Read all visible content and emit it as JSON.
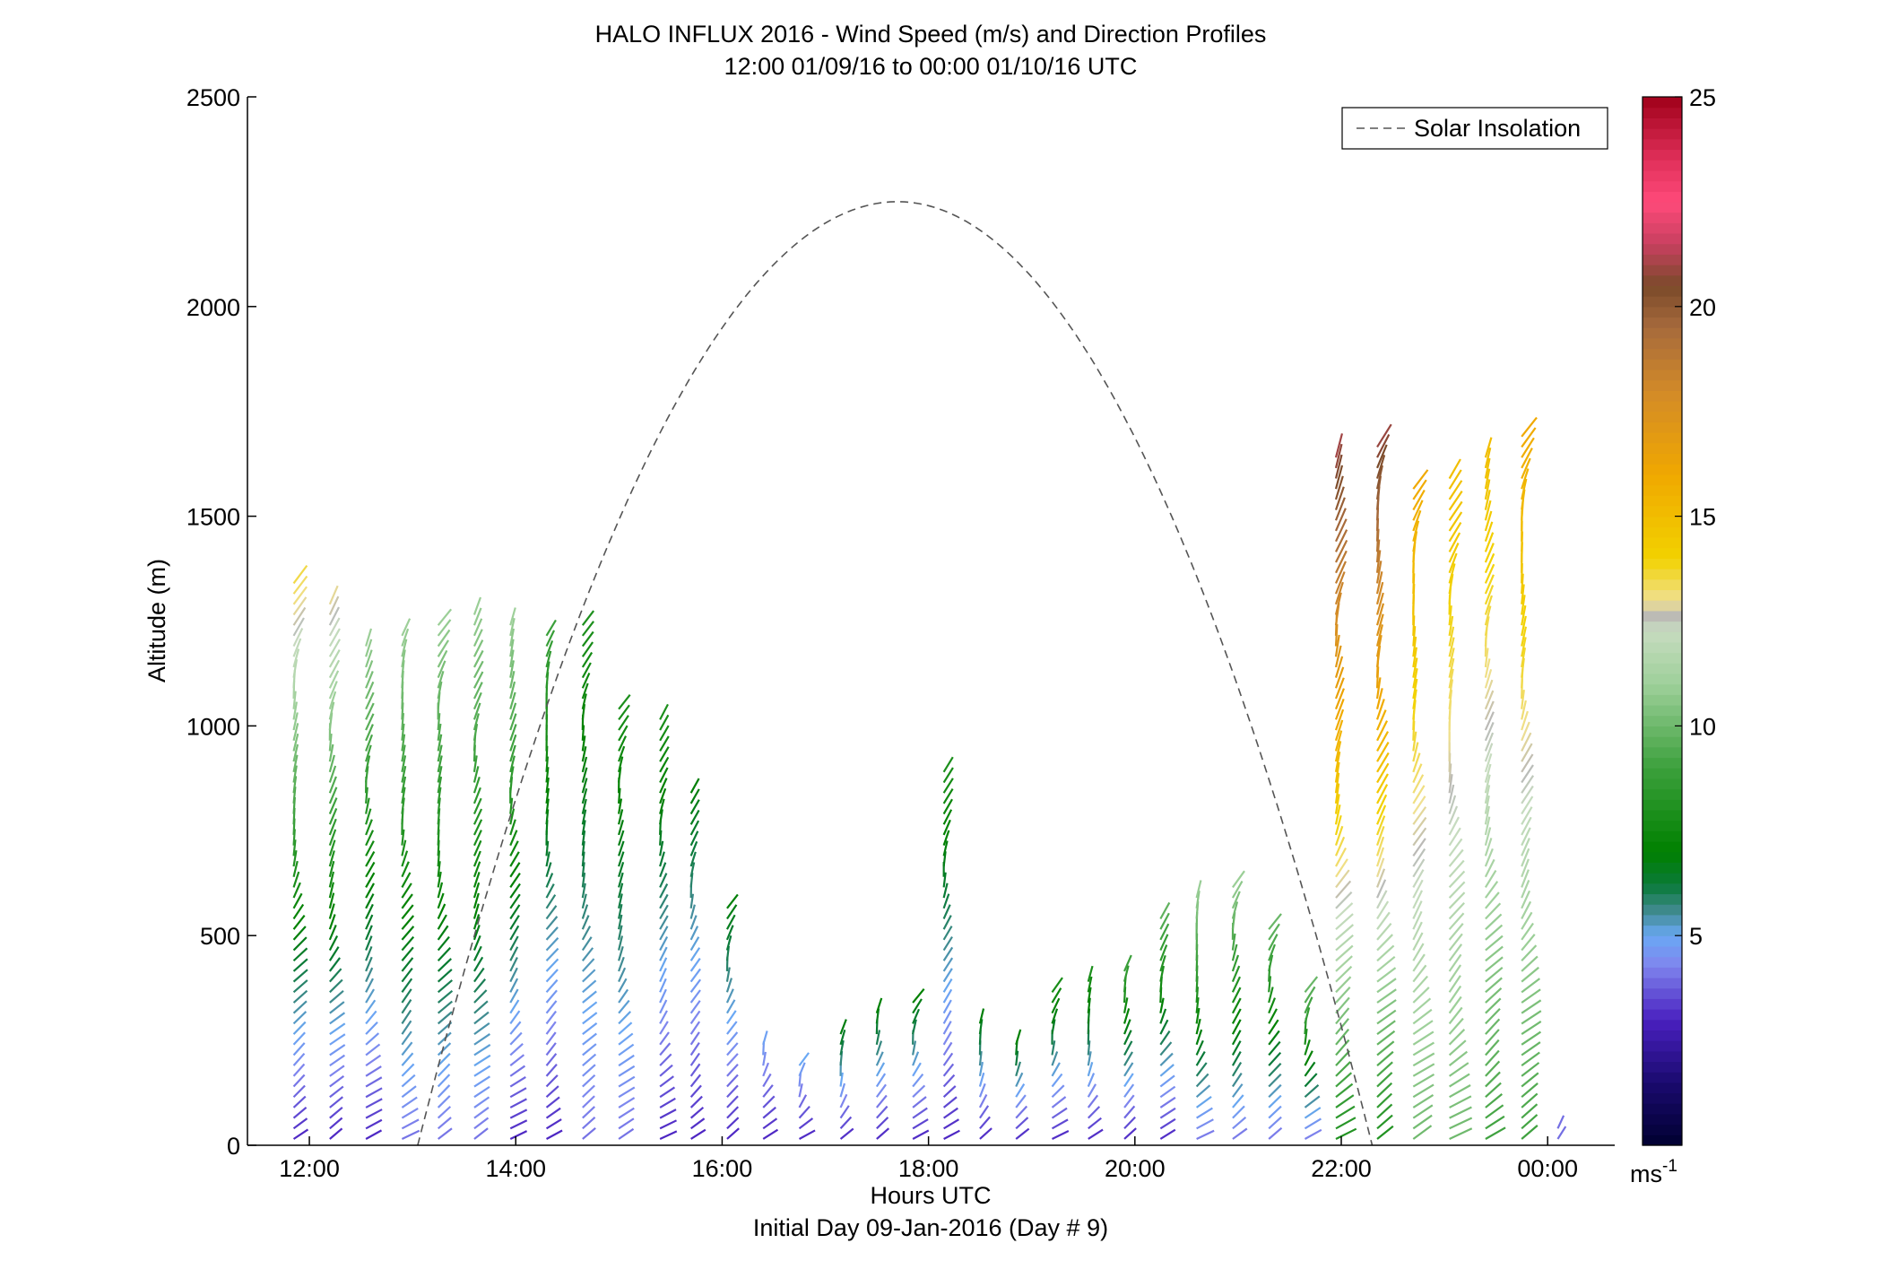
{
  "chart_data": {
    "type": "wind-barb-profile",
    "title": "HALO INFLUX 2016 - Wind Speed (m/s) and Direction Profiles",
    "subtitle": "12:00 01/09/16 to 00:00 01/10/16  UTC",
    "xlabel": "Hours UTC",
    "xlabel2": "Initial Day 09-Jan-2016 (Day # 9)",
    "ylabel": "Altitude (m)",
    "xlim": [
      11.4,
      24.65
    ],
    "ylim": [
      0,
      2500
    ],
    "x_ticks": [
      12,
      14,
      16,
      18,
      20,
      22,
      24
    ],
    "x_tick_labels": [
      "12:00",
      "14:00",
      "16:00",
      "18:00",
      "20:00",
      "22:00",
      "00:00"
    ],
    "y_ticks": [
      0,
      500,
      1000,
      1500,
      2000,
      2500
    ],
    "y_tick_labels": [
      "0",
      "500",
      "1000",
      "1500",
      "2000",
      "2500"
    ],
    "colorbar": {
      "range": [
        0,
        25
      ],
      "ticks": [
        5,
        10,
        15,
        20,
        25
      ],
      "tick_labels": [
        "5",
        "10",
        "15",
        "20",
        "25"
      ],
      "unit_base": "ms",
      "unit_exp": "-1"
    },
    "legend": {
      "label": "Solar Insolation",
      "location": "top-right"
    },
    "solar_insolation": {
      "start_hour": 13.05,
      "peak_hour": 17.7,
      "end_hour": 22.3,
      "peak_altitude": 2250
    },
    "profiles": [
      {
        "hour": 11.9,
        "top": 1340,
        "speed_top": 13.5,
        "speed_bottom": 3
      },
      {
        "hour": 12.25,
        "top": 1300,
        "speed_top": 13,
        "speed_bottom": 3
      },
      {
        "hour": 12.6,
        "top": 1200,
        "speed_top": 11,
        "speed_bottom": 3
      },
      {
        "hour": 12.95,
        "top": 1220,
        "speed_top": 11,
        "speed_bottom": 4
      },
      {
        "hour": 13.3,
        "top": 1250,
        "speed_top": 11,
        "speed_bottom": 4
      },
      {
        "hour": 13.65,
        "top": 1280,
        "speed_top": 11,
        "speed_bottom": 4
      },
      {
        "hour": 14.0,
        "top": 1240,
        "speed_top": 11,
        "speed_bottom": 3
      },
      {
        "hour": 14.35,
        "top": 1220,
        "speed_top": 9,
        "speed_bottom": 3
      },
      {
        "hour": 14.7,
        "top": 1240,
        "speed_top": 8,
        "speed_bottom": 4
      },
      {
        "hour": 15.05,
        "top": 1060,
        "speed_top": 8,
        "speed_bottom": 4
      },
      {
        "hour": 15.45,
        "top": 1020,
        "speed_top": 8,
        "speed_bottom": 3
      },
      {
        "hour": 15.75,
        "top": 860,
        "speed_top": 7,
        "speed_bottom": 3
      },
      {
        "hour": 16.1,
        "top": 580,
        "speed_top": 7,
        "speed_bottom": 3
      },
      {
        "hour": 16.45,
        "top": 260,
        "speed_top": 5,
        "speed_bottom": 3
      },
      {
        "hour": 16.8,
        "top": 190,
        "speed_top": 5,
        "speed_bottom": 3
      },
      {
        "hour": 17.2,
        "top": 280,
        "speed_top": 7,
        "speed_bottom": 3
      },
      {
        "hour": 17.55,
        "top": 320,
        "speed_top": 7,
        "speed_bottom": 3
      },
      {
        "hour": 17.9,
        "top": 340,
        "speed_top": 7,
        "speed_bottom": 3
      },
      {
        "hour": 18.2,
        "top": 900,
        "speed_top": 8,
        "speed_bottom": 3
      },
      {
        "hour": 18.55,
        "top": 300,
        "speed_top": 7,
        "speed_bottom": 3
      },
      {
        "hour": 18.9,
        "top": 240,
        "speed_top": 7,
        "speed_bottom": 3
      },
      {
        "hour": 19.25,
        "top": 380,
        "speed_top": 8,
        "speed_bottom": 3
      },
      {
        "hour": 19.6,
        "top": 400,
        "speed_top": 8,
        "speed_bottom": 3
      },
      {
        "hour": 19.95,
        "top": 420,
        "speed_top": 9,
        "speed_bottom": 3
      },
      {
        "hour": 20.3,
        "top": 560,
        "speed_top": 10,
        "speed_bottom": 3
      },
      {
        "hour": 20.65,
        "top": 600,
        "speed_top": 11,
        "speed_bottom": 4
      },
      {
        "hour": 21.0,
        "top": 620,
        "speed_top": 11,
        "speed_bottom": 4
      },
      {
        "hour": 21.35,
        "top": 520,
        "speed_top": 10,
        "speed_bottom": 4
      },
      {
        "hour": 21.7,
        "top": 370,
        "speed_top": 10,
        "speed_bottom": 4
      },
      {
        "hour": 22.0,
        "top": 1640,
        "speed_top": 21,
        "speed_bottom": 8
      },
      {
        "hour": 22.4,
        "top": 1680,
        "speed_top": 21,
        "speed_bottom": 8
      },
      {
        "hour": 22.75,
        "top": 1580,
        "speed_top": 16,
        "speed_bottom": 10
      },
      {
        "hour": 23.1,
        "top": 1600,
        "speed_top": 15,
        "speed_bottom": 10
      },
      {
        "hour": 23.45,
        "top": 1640,
        "speed_top": 15,
        "speed_bottom": 9
      },
      {
        "hour": 23.8,
        "top": 1700,
        "speed_top": 16,
        "speed_bottom": 9
      },
      {
        "hour": 24.15,
        "top": 40,
        "speed_top": 4,
        "speed_bottom": 4
      }
    ]
  }
}
